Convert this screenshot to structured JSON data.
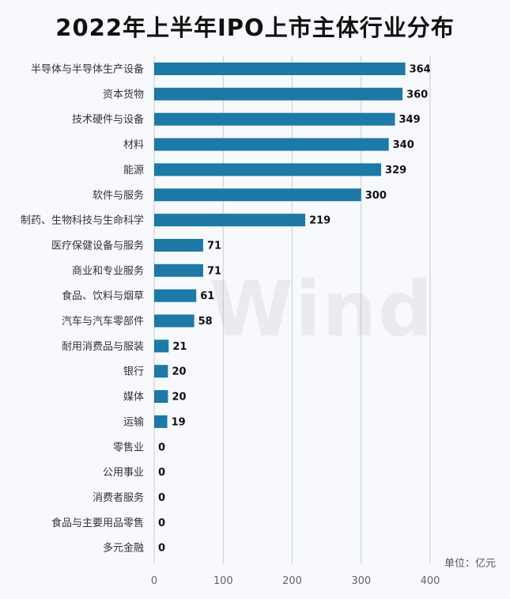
{
  "chart_data": {
    "type": "bar",
    "orientation": "horizontal",
    "title": "2022年上半年IPO上市主体行业分布",
    "unit_note": "单位：亿元",
    "categories": [
      "半导体与半导体生产设备",
      "资本货物",
      "技术硬件与设备",
      "材料",
      "能源",
      "软件与服务",
      "制药、生物科技与生命科学",
      "医疗保健设备与服务",
      "商业和专业服务",
      "食品、饮料与烟草",
      "汽车与汽车零部件",
      "耐用消费品与服装",
      "银行",
      "媒体",
      "运输",
      "零售业",
      "公用事业",
      "消费者服务",
      "食品与主要用品零售",
      "多元金融"
    ],
    "values": [
      364,
      360,
      349,
      340,
      329,
      300,
      219,
      71,
      71,
      61,
      58,
      21,
      20,
      20,
      19,
      0,
      0,
      0,
      0,
      0
    ],
    "xticks": [
      "0",
      "100",
      "200",
      "300",
      "400"
    ],
    "xlim": [
      0,
      400
    ],
    "grid": "vertical",
    "bar_color": "#1d79a5",
    "watermark": "Wind"
  }
}
